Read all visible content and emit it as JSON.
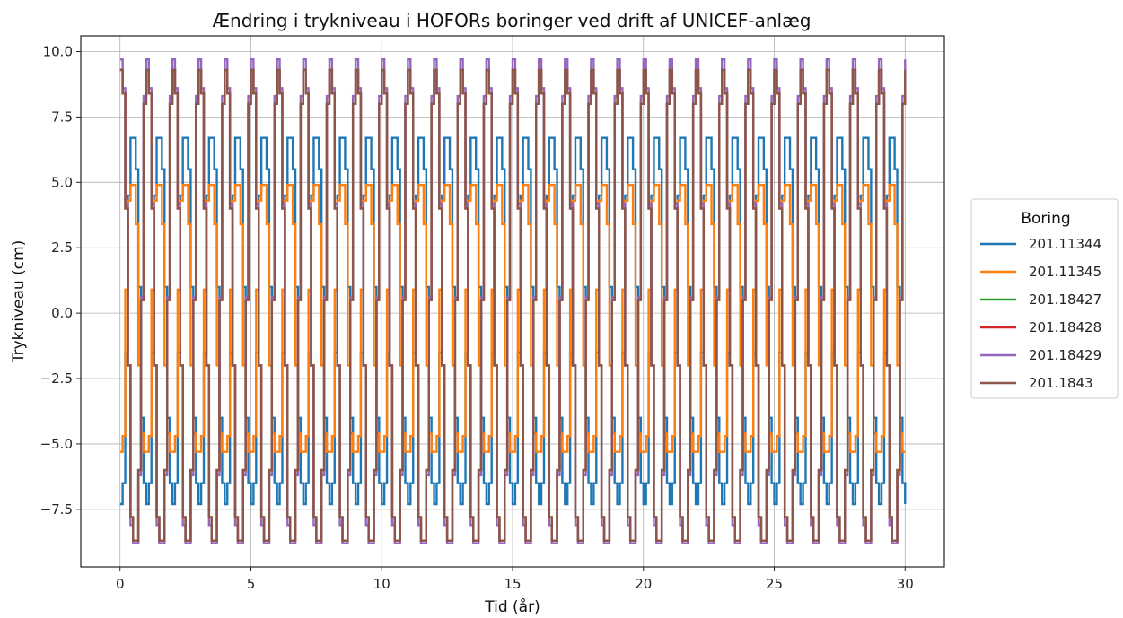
{
  "chart_data": {
    "type": "line",
    "title": "Ændring i trykniveau i HOFORs boringer ved drift af UNICEF-anlæg",
    "xlabel": "Tid (år)",
    "ylabel": "Trykniveau (cm)",
    "xlim": [
      -1.5,
      31.5
    ],
    "ylim": [
      -9.7,
      10.6
    ],
    "xticks": [
      0,
      5,
      10,
      15,
      20,
      25,
      30
    ],
    "xtick_labels": [
      "0",
      "5",
      "10",
      "15",
      "20",
      "25",
      "30"
    ],
    "yticks": [
      -7.5,
      -5.0,
      -2.5,
      0.0,
      2.5,
      5.0,
      7.5,
      10.0
    ],
    "ytick_labels": [
      "−7.5",
      "−5.0",
      "−2.5",
      "0.0",
      "2.5",
      "5.0",
      "7.5",
      "10.0"
    ],
    "grid": true,
    "legend": {
      "title": "Boring",
      "placement": "outside-right"
    },
    "cycle": {
      "period_years": 1,
      "cycles": 30,
      "note_shape": "annual stepwise seasonal cycle; values per step within each year"
    },
    "series": [
      {
        "name": "201.11344",
        "color": "#1f77b4",
        "x": [
          0,
          0.1,
          0.2,
          0.3,
          0.4,
          0.5,
          0.6,
          0.7,
          0.8,
          0.9,
          1.0
        ],
        "y": [
          -7.3,
          -6.5,
          -1.5,
          4.5,
          6.7,
          6.7,
          5.5,
          1.0,
          -4.0,
          -6.5,
          -7.3
        ]
      },
      {
        "name": "201.11345",
        "color": "#ff7f0e",
        "x": [
          0,
          0.1,
          0.2,
          0.3,
          0.4,
          0.5,
          0.6,
          0.7,
          0.8,
          0.9,
          1.0
        ],
        "y": [
          -5.3,
          -4.7,
          0.9,
          4.3,
          4.9,
          4.9,
          3.4,
          -2.0,
          -4.6,
          -5.3,
          -5.3
        ]
      },
      {
        "name": "201.18427",
        "color": "#2ca02c",
        "x": [
          0,
          0.1,
          0.2,
          0.3,
          0.4,
          0.5,
          0.6,
          0.7,
          0.8,
          0.9,
          1.0
        ],
        "y": [
          9.3,
          8.4,
          4.0,
          -2.0,
          -7.8,
          -8.7,
          -8.7,
          -6.0,
          0.5,
          8.0,
          9.3
        ]
      },
      {
        "name": "201.18428",
        "color": "#d62728",
        "x": [
          0,
          0.1,
          0.2,
          0.3,
          0.4,
          0.5,
          0.6,
          0.7,
          0.8,
          0.9,
          1.0
        ],
        "y": [
          9.3,
          8.4,
          4.0,
          -2.0,
          -7.8,
          -8.7,
          -8.7,
          -6.0,
          0.5,
          8.0,
          9.3
        ]
      },
      {
        "name": "201.18429",
        "color": "#9467bd",
        "x": [
          0,
          0.1,
          0.2,
          0.3,
          0.4,
          0.5,
          0.6,
          0.7,
          0.8,
          0.9,
          1.0
        ],
        "y": [
          9.7,
          8.6,
          4.2,
          -2.0,
          -8.1,
          -8.8,
          -8.8,
          -6.2,
          0.6,
          8.3,
          9.7
        ]
      },
      {
        "name": "201.1843",
        "color": "#8c564b",
        "x": [
          0,
          0.1,
          0.2,
          0.3,
          0.4,
          0.5,
          0.6,
          0.7,
          0.8,
          0.9,
          1.0
        ],
        "y": [
          9.3,
          8.4,
          4.0,
          -2.0,
          -7.8,
          -8.7,
          -8.7,
          -6.0,
          0.5,
          8.0,
          9.3
        ]
      }
    ]
  }
}
